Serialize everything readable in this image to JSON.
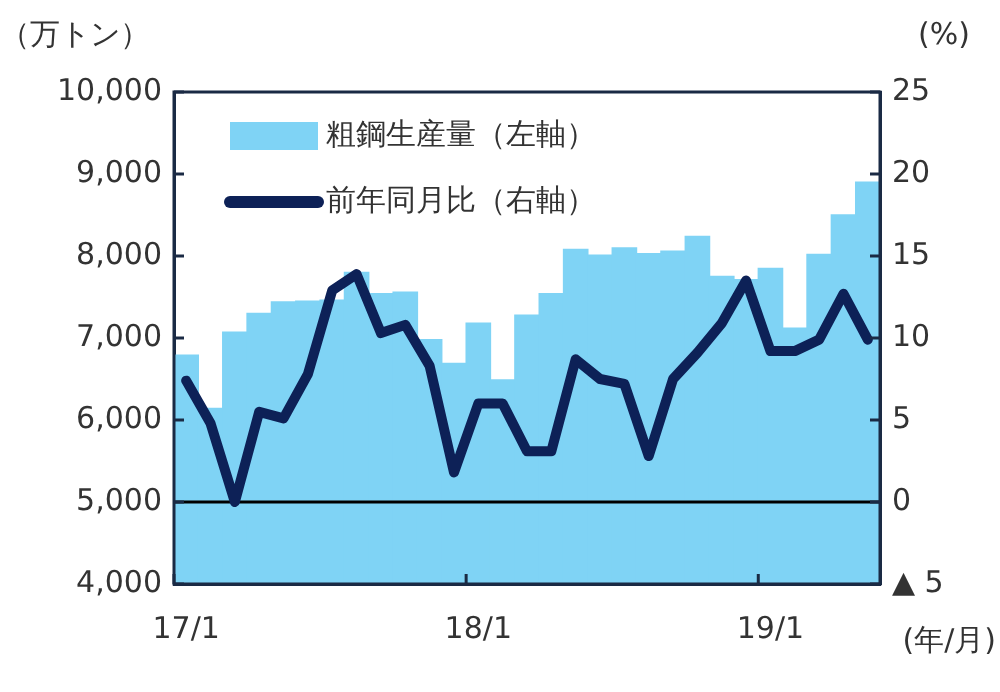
{
  "chart_data": {
    "type": "bar",
    "categories": [
      "17/1",
      null,
      null,
      null,
      null,
      null,
      null,
      null,
      null,
      null,
      null,
      null,
      "18/1",
      null,
      null,
      null,
      null,
      null,
      null,
      null,
      null,
      null,
      null,
      null,
      "19/1",
      null,
      null,
      null,
      null
    ],
    "series": [
      {
        "name": "粗鋼生産量（左軸）",
        "color": "#7fd3f5",
        "values": [
          6790,
          6140,
          7070,
          7300,
          7440,
          7450,
          7460,
          7800,
          7540,
          7560,
          6980,
          6690,
          7180,
          6490,
          7280,
          7540,
          8080,
          8010,
          8100,
          8030,
          8060,
          8240,
          7750,
          7710,
          7850,
          7120,
          8020,
          8500,
          8900
        ]
      },
      {
        "name": "前年同月比（右軸）",
        "type": "line",
        "axis": "y2",
        "color": "#0d2157",
        "values": [
          7.4,
          4.8,
          0.0,
          5.5,
          5.1,
          7.8,
          12.9,
          13.9,
          10.3,
          10.8,
          8.3,
          1.8,
          6.0,
          6.0,
          3.1,
          3.1,
          8.7,
          7.5,
          7.2,
          2.8,
          7.5,
          9.1,
          10.9,
          13.5,
          9.2,
          9.2,
          9.9,
          12.7,
          9.9
        ]
      }
    ],
    "ylabel": "（万トン）",
    "y2label": "(%)",
    "xlabel": "(年/月)",
    "ylim": [
      4000,
      10000
    ],
    "yticks": [
      {
        "value": 4000,
        "label": "4,000"
      },
      {
        "value": 5000,
        "label": "5,000"
      },
      {
        "value": 6000,
        "label": "6,000"
      },
      {
        "value": 7000,
        "label": "7,000"
      },
      {
        "value": 8000,
        "label": "8,000"
      },
      {
        "value": 9000,
        "label": "9,000"
      },
      {
        "value": 10000,
        "label": "10,000"
      }
    ],
    "y2lim": [
      -5,
      25
    ],
    "y2ticks": [
      {
        "value": -5,
        "label": "▲ 5"
      },
      0,
      5,
      10,
      15,
      20,
      25
    ],
    "ref_lines": [
      {
        "axis": "y2",
        "value": 0,
        "color": "#000000"
      }
    ],
    "legend": "top left",
    "grid": false,
    "marker": "none",
    "line_style": "solid"
  }
}
